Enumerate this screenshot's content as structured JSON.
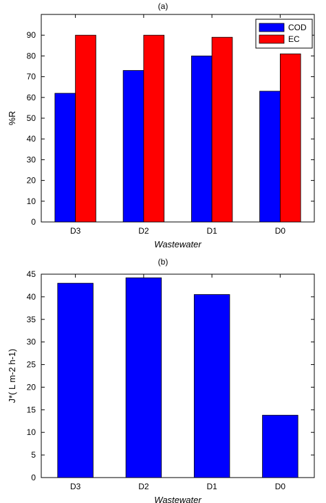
{
  "chart_data": [
    {
      "type": "bar",
      "title": "(a)",
      "categories": [
        "D3",
        "D2",
        "D1",
        "D0"
      ],
      "series": [
        {
          "name": "COD",
          "values": [
            62,
            73,
            80,
            63
          ],
          "color": "#0000ff"
        },
        {
          "name": "EC",
          "values": [
            90,
            90,
            89,
            81
          ],
          "color": "#ff0000"
        }
      ],
      "xlabel": "Wastewater",
      "ylabel": "%R",
      "ylim": [
        0,
        100
      ],
      "yticks": [
        0,
        10,
        20,
        30,
        40,
        50,
        60,
        70,
        80,
        90
      ],
      "grid": false,
      "legend_position": "top-right"
    },
    {
      "type": "bar",
      "title": "(b)",
      "categories": [
        "D3",
        "D2",
        "D1",
        "D0"
      ],
      "series": [
        {
          "values": [
            43,
            44.2,
            40.5,
            13.8
          ],
          "color": "#0000ff"
        }
      ],
      "xlabel": "Wastewater",
      "ylabel": "J*( L m-2 h-1)",
      "ylim": [
        0,
        45
      ],
      "yticks": [
        0,
        5,
        10,
        15,
        20,
        25,
        30,
        35,
        40,
        45
      ],
      "grid": false
    }
  ]
}
